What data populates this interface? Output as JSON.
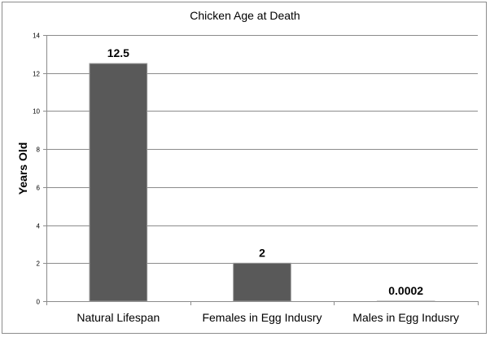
{
  "chart_data": {
    "type": "bar",
    "title": "Chicken Age at Death",
    "xlabel": "",
    "ylabel": "Years Old",
    "categories": [
      "Natural Lifespan",
      "Females in Egg Indusry",
      "Males in Egg Indusry"
    ],
    "values": [
      12.5,
      2,
      0.0002
    ],
    "data_labels": [
      "12.5",
      "2",
      "0.0002"
    ],
    "ylim": [
      0,
      14
    ],
    "yticks": [
      0,
      2,
      4,
      6,
      8,
      10,
      12,
      14
    ],
    "grid": true,
    "legend": "none",
    "colors": {
      "bar": "#595959",
      "bar_edge": "#9a9a9a",
      "grid": "#8c8c8c",
      "axis": "#8c8c8c"
    }
  }
}
